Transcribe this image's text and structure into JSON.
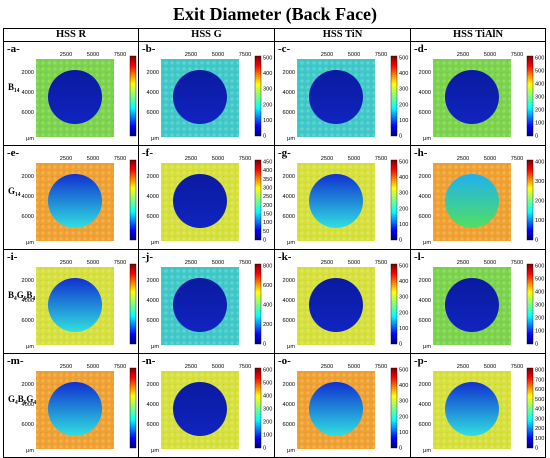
{
  "title": "Exit Diameter (Back Face)",
  "columns": [
    "HSS R",
    "HSS G",
    "HSS TiN",
    "HSS TiAlN"
  ],
  "rows": [
    {
      "label": "B₁₄",
      "panels": [
        {
          "letter": "-a-",
          "cbar": [
            "500",
            "400",
            "300",
            "200",
            "100",
            "0"
          ],
          "bg": "green",
          "hole": "dark"
        },
        {
          "letter": "-b-",
          "cbar": [
            "500",
            "400",
            "300",
            "200",
            "100",
            "0"
          ],
          "bg": "cyan",
          "hole": "dark"
        },
        {
          "letter": "-c-",
          "cbar": [
            "500",
            "400",
            "300",
            "200",
            "100",
            "0"
          ],
          "bg": "cyan",
          "hole": "dark"
        },
        {
          "letter": "-d-",
          "cbar": [
            "600",
            "500",
            "400",
            "300",
            "200",
            "100",
            "0"
          ],
          "bg": "green",
          "hole": "dark"
        }
      ]
    },
    {
      "label": "G₁₄",
      "panels": [
        {
          "letter": "-e-",
          "cbar": [
            "350",
            "300",
            "250",
            "200",
            "150",
            "100",
            "50",
            "0"
          ],
          "bg": "orange",
          "hole": "gradient"
        },
        {
          "letter": "-f-",
          "cbar": [
            "450",
            "400",
            "350",
            "300",
            "250",
            "200",
            "150",
            "100",
            "50",
            "0"
          ],
          "bg": "yellow",
          "hole": "dark"
        },
        {
          "letter": "-g-",
          "cbar": [
            "500",
            "400",
            "300",
            "200",
            "100",
            "0"
          ],
          "bg": "yellow",
          "hole": "gradient"
        },
        {
          "letter": "-h-",
          "cbar": [
            "400",
            "300",
            "200",
            "100",
            "0"
          ],
          "bg": "orange",
          "hole": "green"
        }
      ]
    },
    {
      "label": "B₄G₆B₄",
      "panels": [
        {
          "letter": "-i-",
          "cbar": [
            "500",
            "400",
            "300",
            "200",
            "100",
            "0"
          ],
          "bg": "yellow",
          "hole": "gradient"
        },
        {
          "letter": "-j-",
          "cbar": [
            "800",
            "600",
            "400",
            "200",
            "0"
          ],
          "bg": "cyan",
          "hole": "dark"
        },
        {
          "letter": "-k-",
          "cbar": [
            "500",
            "400",
            "300",
            "200",
            "100",
            "0"
          ],
          "bg": "yellow",
          "hole": "dark"
        },
        {
          "letter": "-l-",
          "cbar": [
            "600",
            "500",
            "400",
            "300",
            "200",
            "100",
            "0"
          ],
          "bg": "green",
          "hole": "dark"
        }
      ]
    },
    {
      "label": "G₄B₆G₄",
      "panels": [
        {
          "letter": "-m-",
          "cbar": [
            "700",
            "600",
            "500",
            "400",
            "300",
            "200",
            "100",
            "0"
          ],
          "bg": "orange",
          "hole": "gradient"
        },
        {
          "letter": "-n-",
          "cbar": [
            "600",
            "500",
            "400",
            "300",
            "200",
            "100",
            "0"
          ],
          "bg": "yellow",
          "hole": "dark"
        },
        {
          "letter": "-o-",
          "cbar": [
            "500",
            "400",
            "300",
            "200",
            "100",
            "0"
          ],
          "bg": "orange",
          "hole": "gradient"
        },
        {
          "letter": "-p-",
          "cbar": [
            "800",
            "700",
            "600",
            "500",
            "400",
            "300",
            "200",
            "100",
            "0"
          ],
          "bg": "yellow",
          "hole": "gradient"
        }
      ]
    }
  ],
  "x_ticks": [
    "2500",
    "5000",
    "7500"
  ],
  "y_ticks": [
    "2000",
    "4000",
    "6000"
  ],
  "unit": "μm",
  "colors": {
    "green": "#7ad34a",
    "cyan": "#3fc8c8",
    "yellow": "#d6e03a",
    "orange": "#f0a030",
    "dark": "#0a1aa0",
    "gradient_top": "#1030d0",
    "gradient_bottom": "#30e0e0",
    "hole_green_top": "#20b0f0",
    "hole_green_bottom": "#50e060"
  }
}
